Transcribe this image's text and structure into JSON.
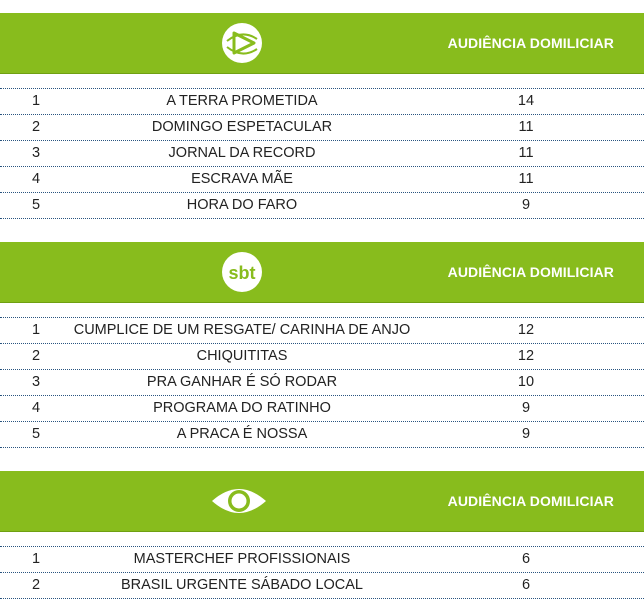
{
  "sections": [
    {
      "network_icon": "record-logo-icon",
      "column_title": "AUDIÊNCIA DOMILICIAR",
      "rows": [
        {
          "rank": "1",
          "program": "A TERRA PROMETIDA",
          "value": "14"
        },
        {
          "rank": "2",
          "program": "DOMINGO ESPETACULAR",
          "value": "11"
        },
        {
          "rank": "3",
          "program": "JORNAL DA RECORD",
          "value": "11"
        },
        {
          "rank": "4",
          "program": "ESCRAVA MÃE",
          "value": "11"
        },
        {
          "rank": "5",
          "program": "HORA DO FARO",
          "value": "9"
        }
      ]
    },
    {
      "network_icon": "sbt-logo-icon",
      "logo_text": "sbt",
      "column_title": "AUDIÊNCIA DOMILICIAR",
      "rows": [
        {
          "rank": "1",
          "program": "CUMPLICE DE UM RESGATE/ CARINHA DE ANJO",
          "value": "12"
        },
        {
          "rank": "2",
          "program": "CHIQUITITAS",
          "value": "12"
        },
        {
          "rank": "3",
          "program": "PRA GANHAR É SÓ RODAR",
          "value": "10"
        },
        {
          "rank": "4",
          "program": "PROGRAMA DO RATINHO",
          "value": "9"
        },
        {
          "rank": "5",
          "program": "A PRACA É NOSSA",
          "value": "9"
        }
      ]
    },
    {
      "network_icon": "band-eye-logo-icon",
      "column_title": "AUDIÊNCIA DOMILICIAR",
      "rows": [
        {
          "rank": "1",
          "program": "MASTERCHEF PROFISSIONAIS",
          "value": "6"
        },
        {
          "rank": "2",
          "program": "BRASIL URGENTE SÁBADO LOCAL",
          "value": "6"
        }
      ]
    }
  ],
  "colors": {
    "header_bg": "#88bc1d",
    "header_text": "#ffffff",
    "row_divider": "#2a5580",
    "body_text": "#222222"
  }
}
